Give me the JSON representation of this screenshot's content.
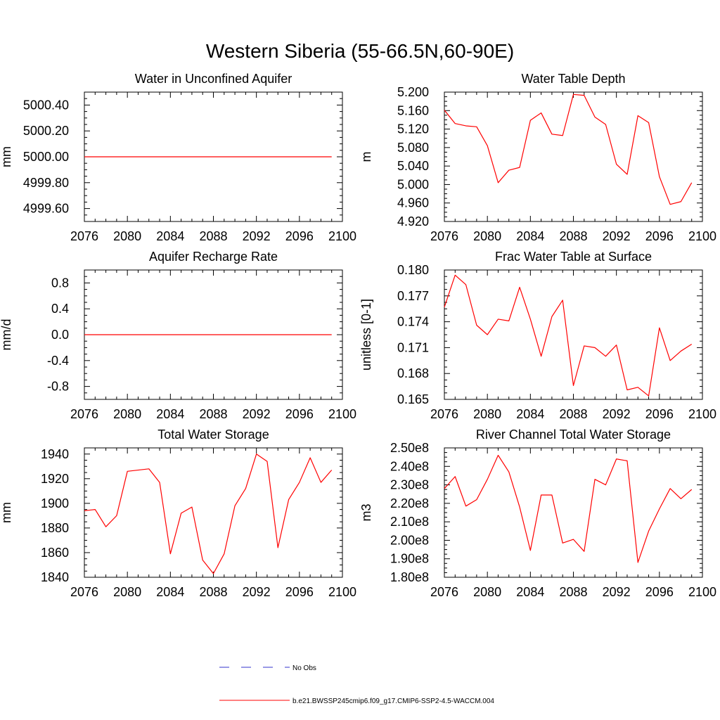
{
  "figure_title": "Western Siberia (55-66.5N,60-90E)",
  "legend": {
    "entries": [
      {
        "label": "No Obs",
        "color": "#3333cc",
        "dash": true
      },
      {
        "label": "b.e21.BWSSP245cmip6.f09_g17.CMIP6-SSP2-4.5-WACCM.004",
        "color": "#ff0000",
        "dash": false
      }
    ]
  },
  "chart_data": [
    {
      "type": "line",
      "title": "Water in Unconfined Aquifer",
      "ylabel": "mm",
      "xlim": [
        2076,
        2100
      ],
      "ylim": [
        4999.5,
        5000.5
      ],
      "xticks": [
        "2076",
        "2080",
        "2084",
        "2088",
        "2092",
        "2096",
        "2100"
      ],
      "yticks": [
        {
          "v": 4999.6,
          "label": "4999.60"
        },
        {
          "v": 4999.8,
          "label": "4999.80"
        },
        {
          "v": 5000.0,
          "label": "5000.00"
        },
        {
          "v": 5000.2,
          "label": "5000.20"
        },
        {
          "v": 5000.4,
          "label": "5000.40"
        }
      ],
      "series": [
        {
          "color": "#ff0000",
          "x": [
            2076,
            2077,
            2078,
            2079,
            2080,
            2081,
            2082,
            2083,
            2084,
            2085,
            2086,
            2087,
            2088,
            2089,
            2090,
            2091,
            2092,
            2093,
            2094,
            2095,
            2096,
            2097,
            2098,
            2099
          ],
          "y": [
            5000,
            5000,
            5000,
            5000,
            5000,
            5000,
            5000,
            5000,
            5000,
            5000,
            5000,
            5000,
            5000,
            5000,
            5000,
            5000,
            5000,
            5000,
            5000,
            5000,
            5000,
            5000,
            5000,
            5000
          ]
        }
      ]
    },
    {
      "type": "line",
      "title": "Water Table Depth",
      "ylabel": "m",
      "xlim": [
        2076,
        2100
      ],
      "ylim": [
        4.92,
        5.2
      ],
      "xticks": [
        "2076",
        "2080",
        "2084",
        "2088",
        "2092",
        "2096",
        "2100"
      ],
      "yticks": [
        {
          "v": 4.92,
          "label": "4.920"
        },
        {
          "v": 4.96,
          "label": "4.960"
        },
        {
          "v": 5.0,
          "label": "5.000"
        },
        {
          "v": 5.04,
          "label": "5.040"
        },
        {
          "v": 5.08,
          "label": "5.080"
        },
        {
          "v": 5.12,
          "label": "5.120"
        },
        {
          "v": 5.16,
          "label": "5.160"
        },
        {
          "v": 5.2,
          "label": "5.200"
        }
      ],
      "series": [
        {
          "color": "#ff0000",
          "x": [
            2076,
            2077,
            2078,
            2079,
            2080,
            2081,
            2082,
            2083,
            2084,
            2085,
            2086,
            2087,
            2088,
            2089,
            2090,
            2091,
            2092,
            2093,
            2094,
            2095,
            2096,
            2097,
            2098,
            2099
          ],
          "y": [
            5.161,
            5.132,
            5.127,
            5.125,
            5.084,
            5.004,
            5.031,
            5.037,
            5.139,
            5.155,
            5.109,
            5.106,
            5.195,
            5.193,
            5.146,
            5.13,
            5.044,
            5.022,
            5.149,
            5.134,
            5.017,
            4.957,
            4.963,
            5.004
          ]
        }
      ]
    },
    {
      "type": "line",
      "title": "Aquifer Recharge Rate",
      "ylabel": "mm/d",
      "xlim": [
        2076,
        2100
      ],
      "ylim": [
        -1.0,
        1.0
      ],
      "xticks": [
        "2076",
        "2080",
        "2084",
        "2088",
        "2092",
        "2096",
        "2100"
      ],
      "yticks": [
        {
          "v": -0.8,
          "label": "-0.8"
        },
        {
          "v": -0.4,
          "label": "-0.4"
        },
        {
          "v": 0.0,
          "label": "0.0"
        },
        {
          "v": 0.4,
          "label": "0.4"
        },
        {
          "v": 0.8,
          "label": "0.8"
        }
      ],
      "series": [
        {
          "color": "#ff0000",
          "x": [
            2076,
            2077,
            2078,
            2079,
            2080,
            2081,
            2082,
            2083,
            2084,
            2085,
            2086,
            2087,
            2088,
            2089,
            2090,
            2091,
            2092,
            2093,
            2094,
            2095,
            2096,
            2097,
            2098,
            2099
          ],
          "y": [
            0,
            0,
            0,
            0,
            0,
            0,
            0,
            0,
            0,
            0,
            0,
            0,
            0,
            0,
            0,
            0,
            0,
            0,
            0,
            0,
            0,
            0,
            0,
            0
          ]
        }
      ]
    },
    {
      "type": "line",
      "title": "Frac Water Table at Surface",
      "ylabel": "unitless [0-1]",
      "xlim": [
        2076,
        2100
      ],
      "ylim": [
        0.165,
        0.18
      ],
      "xticks": [
        "2076",
        "2080",
        "2084",
        "2088",
        "2092",
        "2096",
        "2100"
      ],
      "yticks": [
        {
          "v": 0.165,
          "label": "0.165"
        },
        {
          "v": 0.168,
          "label": "0.168"
        },
        {
          "v": 0.171,
          "label": "0.171"
        },
        {
          "v": 0.174,
          "label": "0.174"
        },
        {
          "v": 0.177,
          "label": "0.177"
        },
        {
          "v": 0.18,
          "label": "0.180"
        }
      ],
      "series": [
        {
          "color": "#ff0000",
          "x": [
            2076,
            2077,
            2078,
            2079,
            2080,
            2081,
            2082,
            2083,
            2084,
            2085,
            2086,
            2087,
            2088,
            2089,
            2090,
            2091,
            2092,
            2093,
            2094,
            2095,
            2096,
            2097,
            2098,
            2099
          ],
          "y": [
            0.1757,
            0.1794,
            0.1783,
            0.1736,
            0.1725,
            0.1743,
            0.1741,
            0.178,
            0.1743,
            0.17,
            0.1746,
            0.1765,
            0.1666,
            0.1712,
            0.171,
            0.17,
            0.1713,
            0.1661,
            0.1664,
            0.1654,
            0.1733,
            0.1695,
            0.1706,
            0.1714
          ]
        }
      ]
    },
    {
      "type": "line",
      "title": "Total Water Storage",
      "ylabel": "mm",
      "xlim": [
        2076,
        2100
      ],
      "ylim": [
        1840,
        1945
      ],
      "xticks": [
        "2076",
        "2080",
        "2084",
        "2088",
        "2092",
        "2096",
        "2100"
      ],
      "yticks": [
        {
          "v": 1840,
          "label": "1840"
        },
        {
          "v": 1860,
          "label": "1860"
        },
        {
          "v": 1880,
          "label": "1880"
        },
        {
          "v": 1900,
          "label": "1900"
        },
        {
          "v": 1920,
          "label": "1920"
        },
        {
          "v": 1940,
          "label": "1940"
        }
      ],
      "series": [
        {
          "color": "#ff0000",
          "x": [
            2076,
            2077,
            2078,
            2079,
            2080,
            2081,
            2082,
            2083,
            2084,
            2085,
            2086,
            2087,
            2088,
            2089,
            2090,
            2091,
            2092,
            2093,
            2094,
            2095,
            2096,
            2097,
            2098,
            2099
          ],
          "y": [
            1894,
            1895,
            1881,
            1890,
            1926,
            1927,
            1928,
            1917,
            1859,
            1892,
            1897,
            1854,
            1843,
            1859,
            1898,
            1912,
            1940,
            1934,
            1864,
            1903,
            1917,
            1937,
            1917,
            1927
          ]
        }
      ]
    },
    {
      "type": "line",
      "title": "River Channel Total Water Storage",
      "ylabel": "m3",
      "xlim": [
        2076,
        2100
      ],
      "ylim": [
        180000000.0,
        250000000.0
      ],
      "xticks": [
        "2076",
        "2080",
        "2084",
        "2088",
        "2092",
        "2096",
        "2100"
      ],
      "yticks": [
        {
          "v": 180000000.0,
          "label": "1.80e8"
        },
        {
          "v": 190000000.0,
          "label": "1.90e8"
        },
        {
          "v": 200000000.0,
          "label": "2.00e8"
        },
        {
          "v": 210000000.0,
          "label": "2.10e8"
        },
        {
          "v": 220000000.0,
          "label": "2.20e8"
        },
        {
          "v": 230000000.0,
          "label": "2.30e8"
        },
        {
          "v": 240000000.0,
          "label": "2.40e8"
        },
        {
          "v": 250000000.0,
          "label": "2.50e8"
        }
      ],
      "series": [
        {
          "color": "#ff0000",
          "x": [
            2076,
            2077,
            2078,
            2079,
            2080,
            2081,
            2082,
            2083,
            2084,
            2085,
            2086,
            2087,
            2088,
            2089,
            2090,
            2091,
            2092,
            2093,
            2094,
            2095,
            2096,
            2097,
            2098,
            2099
          ],
          "y": [
            228000000.0,
            234500000.0,
            218500000.0,
            222000000.0,
            233000000.0,
            246000000.0,
            237000000.0,
            218000000.0,
            194500000.0,
            224500000.0,
            224500000.0,
            198500000.0,
            200500000.0,
            194000000.0,
            233000000.0,
            230000000.0,
            244000000.0,
            243000000.0,
            188000000.0,
            205000000.0,
            217000000.0,
            228000000.0,
            222500000.0,
            227500000.0
          ]
        }
      ]
    }
  ]
}
